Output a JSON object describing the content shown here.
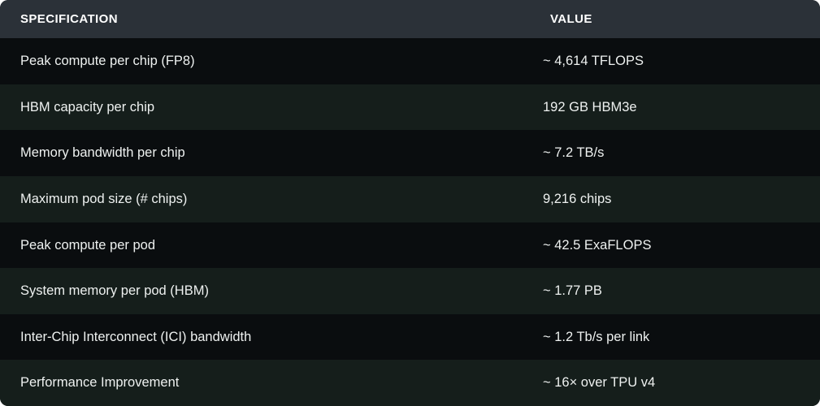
{
  "table": {
    "columns": [
      {
        "label": "SPECIFICATION"
      },
      {
        "label": "VALUE"
      }
    ],
    "rows": [
      {
        "spec": "Peak compute per chip (FP8)",
        "value": "~ 4,614 TFLOPS"
      },
      {
        "spec": "HBM capacity per chip",
        "value": "192 GB HBM3e"
      },
      {
        "spec": "Memory bandwidth per chip",
        "value": "~ 7.2 TB/s"
      },
      {
        "spec": "Maximum pod size (# chips)",
        "value": "9,216 chips"
      },
      {
        "spec": "Peak compute per pod",
        "value": "~ 42.5 ExaFLOPS"
      },
      {
        "spec": "System memory per pod (HBM)",
        "value": "~ 1.77 PB"
      },
      {
        "spec": "Inter-Chip Interconnect (ICI) bandwidth",
        "value": "~ 1.2 Tb/s per link"
      },
      {
        "spec": "Performance Improvement",
        "value": "~ 16× over TPU v4"
      }
    ],
    "colors": {
      "header_bg": "#2b3138",
      "row_odd_bg": "#0a0d0f",
      "row_even_bg": "#151e1b",
      "text": "#eef1f0",
      "header_text": "#ffffff"
    }
  }
}
